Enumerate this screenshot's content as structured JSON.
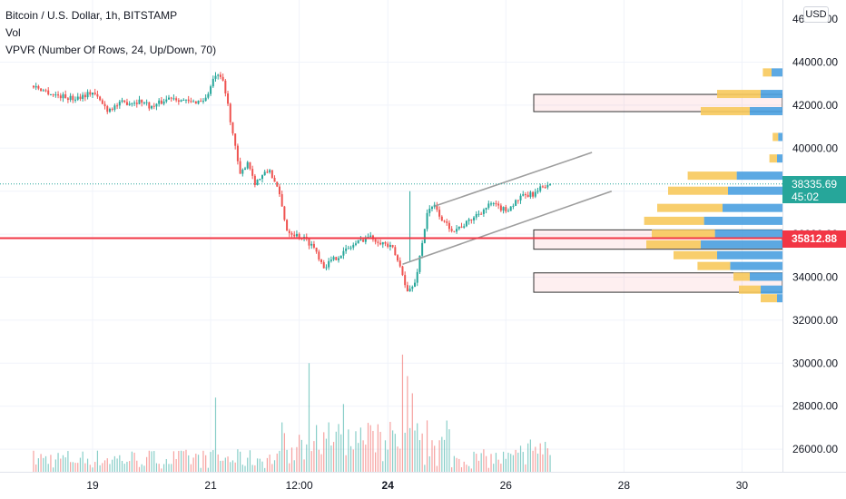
{
  "legend": {
    "symbol": "Bitcoin / U.S. Dollar, 1h, BITSTAMP",
    "volume": "Vol",
    "vpvr": "VPVR (Number Of Rows, 24, Up/Down, 70)"
  },
  "currency_button": "USD",
  "last_price": {
    "value": "38335.69",
    "countdown": "45:02",
    "color": "#26a69a"
  },
  "level_line": {
    "value": "35812.88",
    "color": "#f23645"
  },
  "colors": {
    "up": "#26a69a",
    "down": "#ef5350",
    "vol_up": "#26a69a",
    "vol_down": "#ef5350",
    "vp_up": "#4aa0e0",
    "vp_down": "#f7c95c",
    "channel": "#9e9e9e"
  },
  "chart_data": {
    "type": "candlestick",
    "title": "Bitcoin / U.S. Dollar, 1h, BITSTAMP",
    "y_ticks": [
      26000,
      28000,
      30000,
      32000,
      34000,
      36000,
      38000,
      40000,
      42000,
      44000
    ],
    "y_tick_labels": [
      "26000.00",
      "28000.00",
      "30000.00",
      "32000.00",
      "34000.00",
      "36000.00",
      "38000.00",
      "40000.00",
      "42000.00",
      "44000.00"
    ],
    "x_tick_labels": [
      "19",
      "21",
      "12:00",
      "24",
      "26",
      "28",
      "30"
    ],
    "x_tick_hours": [
      24,
      72,
      108,
      144,
      192,
      240,
      288
    ],
    "price_path": [
      [
        0,
        42900
      ],
      [
        8,
        42500
      ],
      [
        16,
        42300
      ],
      [
        24,
        42600
      ],
      [
        30,
        41800
      ],
      [
        36,
        42100
      ],
      [
        44,
        42200
      ],
      [
        48,
        41900
      ],
      [
        56,
        42400
      ],
      [
        64,
        42100
      ],
      [
        70,
        42300
      ],
      [
        74,
        43400
      ],
      [
        77,
        43100
      ],
      [
        79,
        42000
      ],
      [
        82,
        40000
      ],
      [
        84,
        38700
      ],
      [
        87,
        39400
      ],
      [
        90,
        38400
      ],
      [
        96,
        39000
      ],
      [
        100,
        37800
      ],
      [
        103,
        36200
      ],
      [
        106,
        36000
      ],
      [
        110,
        35800
      ],
      [
        114,
        35400
      ],
      [
        118,
        34500
      ],
      [
        124,
        35000
      ],
      [
        130,
        35500
      ],
      [
        136,
        35900
      ],
      [
        142,
        35600
      ],
      [
        146,
        35300
      ],
      [
        150,
        34200
      ],
      [
        152,
        33300
      ],
      [
        155,
        33700
      ],
      [
        158,
        35600
      ],
      [
        160,
        37000
      ],
      [
        163,
        37300
      ],
      [
        167,
        36500
      ],
      [
        171,
        36200
      ],
      [
        176,
        36500
      ],
      [
        180,
        36900
      ],
      [
        186,
        37400
      ],
      [
        192,
        37100
      ],
      [
        198,
        37700
      ],
      [
        204,
        37900
      ],
      [
        208,
        38300
      ],
      [
        210,
        38335
      ]
    ],
    "volume_spikes": [
      [
        112,
        30000
      ],
      [
        150,
        30400
      ],
      [
        152,
        29400
      ],
      [
        154,
        28600
      ],
      [
        74,
        28400
      ],
      [
        126,
        28100
      ]
    ],
    "volume_profile": [
      {
        "price": 43500,
        "up": 0.1,
        "down": 0.08
      },
      {
        "price": 42500,
        "up": 0.2,
        "down": 0.4
      },
      {
        "price": 41700,
        "up": 0.3,
        "down": 0.45
      },
      {
        "price": 40500,
        "up": 0.04,
        "down": 0.05
      },
      {
        "price": 39500,
        "up": 0.05,
        "down": 0.07
      },
      {
        "price": 38700,
        "up": 0.42,
        "down": 0.45
      },
      {
        "price": 38000,
        "up": 0.5,
        "down": 0.55
      },
      {
        "price": 37200,
        "up": 0.55,
        "down": 0.6
      },
      {
        "price": 36600,
        "up": 0.72,
        "down": 0.55
      },
      {
        "price": 36000,
        "up": 0.62,
        "down": 0.58
      },
      {
        "price": 35500,
        "up": 0.75,
        "down": 0.5
      },
      {
        "price": 35000,
        "up": 0.6,
        "down": 0.4
      },
      {
        "price": 34500,
        "up": 0.48,
        "down": 0.3
      },
      {
        "price": 34000,
        "up": 0.3,
        "down": 0.15
      },
      {
        "price": 33400,
        "up": 0.2,
        "down": 0.2
      },
      {
        "price": 33000,
        "up": 0.05,
        "down": 0.15
      }
    ],
    "zones": [
      {
        "from": 41700,
        "to": 42500
      },
      {
        "from": 35300,
        "to": 36200
      },
      {
        "from": 33300,
        "to": 34200
      }
    ],
    "channel": {
      "upper": [
        [
          163,
          37300
        ],
        [
          210,
          38700
        ],
        [
          227,
          39800
        ]
      ],
      "lower": [
        [
          150,
          34600
        ],
        [
          180,
          36000
        ],
        [
          235,
          38000
        ]
      ]
    }
  }
}
